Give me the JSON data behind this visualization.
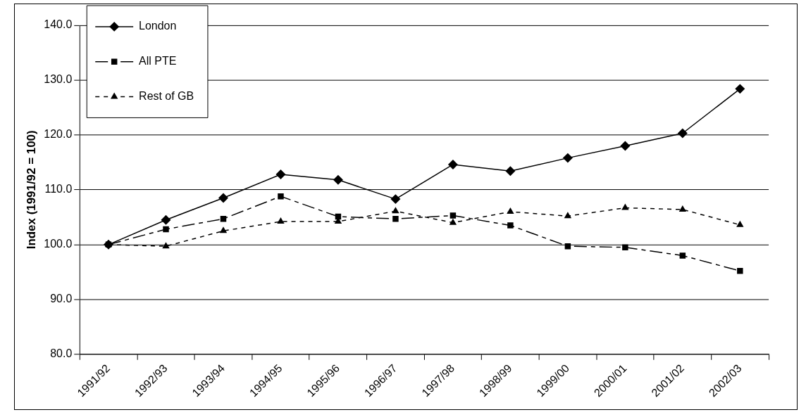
{
  "chart_data": {
    "type": "line",
    "ylabel": "Index (1991/92 = 100)",
    "categories": [
      "1991/92",
      "1992/93",
      "1993/94",
      "1994/95",
      "1995/96",
      "1996/97",
      "1997/98",
      "1998/99",
      "1999/00",
      "2000/01",
      "2001/02",
      "2002/03"
    ],
    "series": [
      {
        "name": "London",
        "color": "#000000",
        "marker": "diamond",
        "line_style": "solid",
        "values": [
          100,
          104.5,
          108.5,
          112.8,
          111.8,
          108.3,
          114.6,
          113.4,
          115.8,
          118.0,
          120.3,
          128.4
        ]
      },
      {
        "name": "All PTE",
        "color": "#000000",
        "marker": "square",
        "line_style": "dashed",
        "values": [
          100,
          102.8,
          104.7,
          108.8,
          105.1,
          104.7,
          105.3,
          103.5,
          99.7,
          99.5,
          98.0,
          95.2
        ]
      },
      {
        "name": "Rest of GB",
        "color": "#000000",
        "marker": "triangle",
        "line_style": "dotted",
        "values": [
          100,
          99.7,
          102.5,
          104.2,
          104.2,
          106.1,
          104.0,
          106.0,
          105.2,
          106.7,
          106.4,
          103.6
        ]
      }
    ],
    "ylim": [
      80,
      140
    ],
    "yticks": [
      {
        "value": 80,
        "label": "80.0"
      },
      {
        "value": 90,
        "label": "90.0"
      },
      {
        "value": 100,
        "label": "100.0"
      },
      {
        "value": 110,
        "label": "110.0"
      },
      {
        "value": 120,
        "label": "120.0"
      },
      {
        "value": 130,
        "label": "130.0"
      },
      {
        "value": 140,
        "label": "140.0"
      }
    ],
    "grid": "y",
    "legend": "top left"
  }
}
